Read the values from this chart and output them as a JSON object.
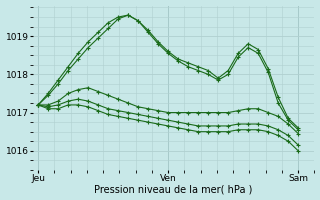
{
  "background_color": "#c8e8e8",
  "grid_color": "#b0d0d0",
  "line_color": "#1a6b1a",
  "marker": "+",
  "markersize": 3,
  "linewidth": 0.8,
  "title": "Pression niveau de la mer( hPa )",
  "ylabel_ticks": [
    1016,
    1017,
    1018,
    1019
  ],
  "xtick_labels": [
    "Jeu",
    "Ven",
    "Sam"
  ],
  "xtick_positions": [
    0,
    24,
    48
  ],
  "xlim": [
    -1,
    51
  ],
  "ylim": [
    1015.5,
    1019.8
  ],
  "series": [
    [
      1017.2,
      1017.5,
      1017.85,
      1018.2,
      1018.55,
      1018.85,
      1019.1,
      1019.35,
      1019.5,
      1019.55,
      1019.4,
      1019.15,
      1018.85,
      1018.6,
      1018.4,
      1018.3,
      1018.2,
      1018.1,
      1017.9,
      1018.1,
      1018.55,
      1018.8,
      1018.65,
      1018.15,
      1017.4,
      1016.85,
      1016.6
    ],
    [
      1017.2,
      1017.45,
      1017.75,
      1018.1,
      1018.4,
      1018.7,
      1018.95,
      1019.2,
      1019.45,
      1019.55,
      1019.4,
      1019.1,
      1018.8,
      1018.55,
      1018.35,
      1018.2,
      1018.1,
      1018.0,
      1017.85,
      1018.0,
      1018.45,
      1018.7,
      1018.55,
      1018.05,
      1017.25,
      1016.8,
      1016.55
    ],
    [
      1017.2,
      1017.2,
      1017.3,
      1017.5,
      1017.6,
      1017.65,
      1017.55,
      1017.45,
      1017.35,
      1017.25,
      1017.15,
      1017.1,
      1017.05,
      1017.0,
      1017.0,
      1017.0,
      1017.0,
      1017.0,
      1017.0,
      1017.0,
      1017.05,
      1017.1,
      1017.1,
      1017.0,
      1016.9,
      1016.7,
      1016.45
    ],
    [
      1017.2,
      1017.15,
      1017.2,
      1017.3,
      1017.35,
      1017.3,
      1017.2,
      1017.1,
      1017.05,
      1017.0,
      1016.95,
      1016.9,
      1016.85,
      1016.8,
      1016.75,
      1016.7,
      1016.65,
      1016.65,
      1016.65,
      1016.65,
      1016.7,
      1016.7,
      1016.7,
      1016.65,
      1016.55,
      1016.4,
      1016.15
    ],
    [
      1017.2,
      1017.1,
      1017.1,
      1017.2,
      1017.2,
      1017.15,
      1017.05,
      1016.95,
      1016.9,
      1016.85,
      1016.8,
      1016.75,
      1016.7,
      1016.65,
      1016.6,
      1016.55,
      1016.5,
      1016.5,
      1016.5,
      1016.5,
      1016.55,
      1016.55,
      1016.55,
      1016.5,
      1016.4,
      1016.25,
      1016.0
    ]
  ]
}
